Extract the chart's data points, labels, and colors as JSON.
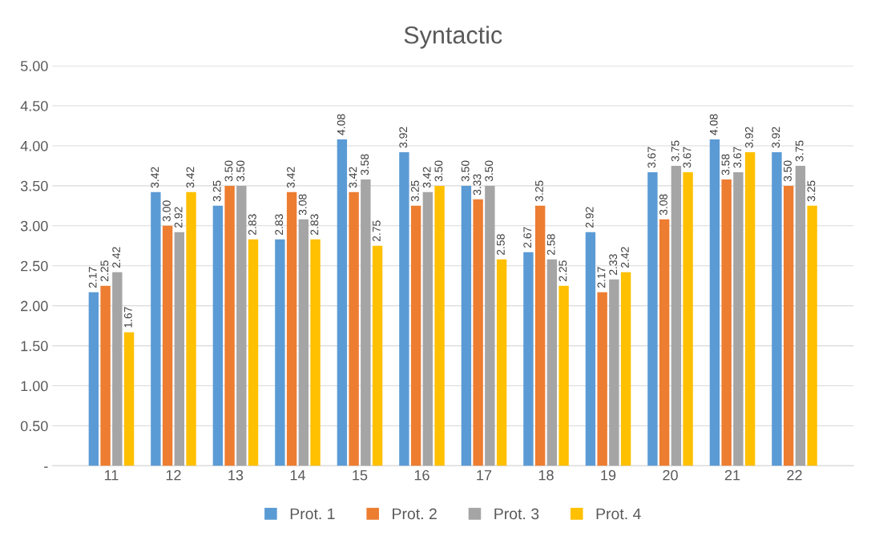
{
  "chart_data": {
    "type": "bar",
    "title": "Syntactic",
    "categories": [
      "11",
      "12",
      "13",
      "14",
      "15",
      "16",
      "17",
      "18",
      "19",
      "20",
      "21",
      "22"
    ],
    "series": [
      {
        "name": "Prot. 1",
        "color": "#5b9bd5",
        "values": [
          2.17,
          3.42,
          3.25,
          2.83,
          4.08,
          3.92,
          3.5,
          2.67,
          2.92,
          3.67,
          4.08,
          3.92
        ],
        "value_labels": [
          "2.17",
          "3.42",
          "3.25",
          "2.83",
          "4.08",
          "3.92",
          "3.50",
          "2.67",
          "2.92",
          "3.67",
          "4.08",
          "3.92"
        ]
      },
      {
        "name": "Prot. 2",
        "color": "#ed7d31",
        "values": [
          2.25,
          3.0,
          3.5,
          3.42,
          3.42,
          3.25,
          3.33,
          3.25,
          2.17,
          3.08,
          3.58,
          3.5
        ],
        "value_labels": [
          "2.25",
          "3.00",
          "3.50",
          "3.42",
          "3.42",
          "3.25",
          "3.33",
          "3.25",
          "2.17",
          "3.08",
          "3.58",
          "3.50"
        ]
      },
      {
        "name": "Prot. 3",
        "color": "#a5a5a5",
        "values": [
          2.42,
          2.92,
          3.5,
          3.08,
          3.58,
          3.42,
          3.5,
          2.58,
          2.33,
          3.75,
          3.67,
          3.75
        ],
        "value_labels": [
          "2.42",
          "2.92",
          "3.50",
          "3.08",
          "3.58",
          "3.42",
          "3.50",
          "2.58",
          "2.33",
          "3.75",
          "3.67",
          "3.75"
        ]
      },
      {
        "name": "Prot. 4",
        "color": "#ffc000",
        "values": [
          1.67,
          3.42,
          2.83,
          2.83,
          2.75,
          3.5,
          2.58,
          2.25,
          2.42,
          3.67,
          3.92,
          3.25
        ],
        "value_labels": [
          "1.67",
          "3.42",
          "2.83",
          "2.83",
          "2.75",
          "3.50",
          "2.58",
          "2.25",
          "2.42",
          "3.67",
          "3.92",
          "3.25"
        ]
      }
    ],
    "ylim": [
      0,
      5
    ],
    "yticks": [
      {
        "value": 0,
        "label": "-"
      },
      {
        "value": 0.5,
        "label": "0.50"
      },
      {
        "value": 1,
        "label": "1.00"
      },
      {
        "value": 1.5,
        "label": "1.50"
      },
      {
        "value": 2,
        "label": "2.00"
      },
      {
        "value": 2.5,
        "label": "2.50"
      },
      {
        "value": 3,
        "label": "3.00"
      },
      {
        "value": 3.5,
        "label": "3.50"
      },
      {
        "value": 4,
        "label": "4.00"
      },
      {
        "value": 4.5,
        "label": "4.50"
      },
      {
        "value": 5,
        "label": "5.00"
      }
    ],
    "grid": "y",
    "legend": "bottom"
  }
}
